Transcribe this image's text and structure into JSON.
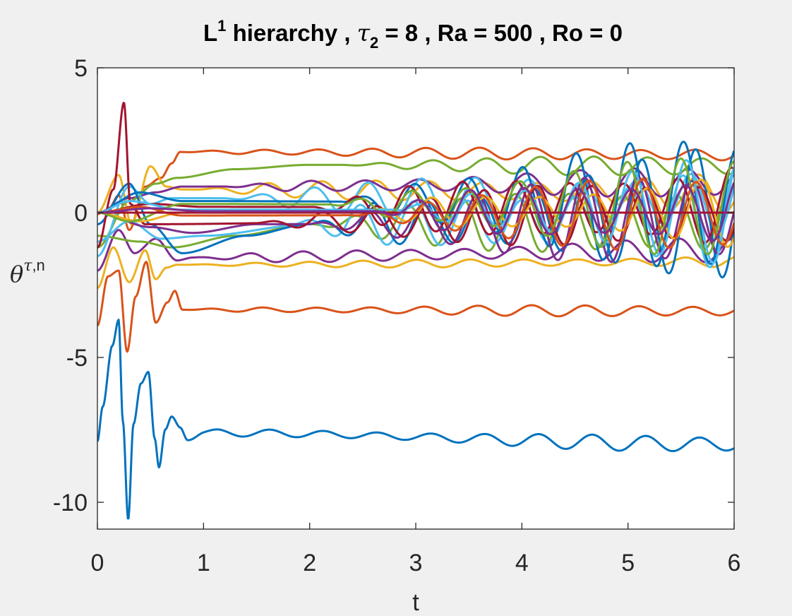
{
  "chart_data": {
    "type": "line",
    "title": {
      "part1": "L",
      "sup": "1",
      "part2": " hierarchy , ",
      "greek": "τ",
      "sub": "2",
      "part3": " = 8 , Ra = 500 , Ro = 0"
    },
    "xlabel": "t",
    "ylabel": {
      "greek": "θ",
      "sup_greek": "τ",
      "sup_text": ",n"
    },
    "xlim": [
      0,
      6
    ],
    "ylim": [
      -10.6,
      5
    ],
    "xticks": [
      0,
      1,
      2,
      3,
      4,
      5,
      6
    ],
    "xtick_labels": [
      "0",
      "1",
      "2",
      "3",
      "4",
      "5",
      "6"
    ],
    "yticks": [
      -10,
      -5,
      0,
      5
    ],
    "ytick_labels": [
      "-10",
      "-5",
      "0",
      "5"
    ],
    "grid": false,
    "box": true,
    "series_colors": [
      "#0072BD",
      "#D95319",
      "#EDB120",
      "#7E2F8E",
      "#77AC30",
      "#4DBEEE",
      "#A2142F"
    ],
    "series": [
      {
        "color": "#0072BD",
        "keypoints": [
          [
            0,
            -7.9
          ],
          [
            0.05,
            -6.7
          ],
          [
            0.14,
            -4.6
          ],
          [
            0.2,
            -3.7
          ],
          [
            0.24,
            -7.2
          ],
          [
            0.29,
            -10.6
          ],
          [
            0.34,
            -7.3
          ],
          [
            0.41,
            -5.9
          ],
          [
            0.48,
            -5.5
          ],
          [
            0.54,
            -7.8
          ],
          [
            0.58,
            -8.8
          ],
          [
            0.64,
            -7.5
          ],
          [
            0.7,
            -7.05
          ],
          [
            0.78,
            -7.4
          ],
          [
            0.85,
            -7.8
          ],
          [
            1.0,
            -7.6
          ],
          [
            6.0,
            -8.0
          ]
        ],
        "settle": -7.8,
        "osc_start": 0.55,
        "osc_amp": 0.08,
        "osc_growth": 0.4,
        "freq": 12.4,
        "phase": 0.3,
        "pts": 70
      },
      {
        "color": "#D95319",
        "keypoints": [
          [
            0,
            -3.9
          ],
          [
            0.1,
            -2.2
          ],
          [
            0.2,
            -2.0
          ],
          [
            0.28,
            -4.8
          ],
          [
            0.36,
            -2.9
          ],
          [
            0.46,
            -1.7
          ],
          [
            0.55,
            -3.8
          ],
          [
            0.66,
            -3.1
          ],
          [
            0.73,
            -2.7
          ],
          [
            0.8,
            -3.35
          ],
          [
            6.0,
            -3.4
          ]
        ],
        "settle": -3.35,
        "osc_start": 0.8,
        "osc_amp": 0.07,
        "osc_growth": 0.35,
        "freq": 12.4,
        "phase": 1.1,
        "pts": 60
      },
      {
        "color": "#D95319",
        "keypoints": [
          [
            0,
            -0.05
          ],
          [
            0.1,
            0.1
          ],
          [
            0.2,
            0.6
          ],
          [
            0.3,
            -0.6
          ],
          [
            0.45,
            0.9
          ],
          [
            0.6,
            1.2
          ],
          [
            0.7,
            1.7
          ],
          [
            0.78,
            2.1
          ],
          [
            6.0,
            2.0
          ]
        ],
        "settle": 2.15,
        "osc_start": 0.75,
        "osc_amp": 0.08,
        "osc_growth": 0.35,
        "freq": 12.4,
        "phase": 0.9,
        "pts": 60
      },
      {
        "color": "#EDB120",
        "keypoints": [
          [
            0,
            -2.6
          ],
          [
            0.15,
            -1.2
          ],
          [
            0.3,
            -2.4
          ],
          [
            0.45,
            -1.3
          ],
          [
            0.55,
            -2.3
          ],
          [
            0.65,
            -1.9
          ],
          [
            0.75,
            -1.8
          ],
          [
            6.0,
            -1.7
          ]
        ],
        "settle": -1.75,
        "osc_start": 0.8,
        "osc_amp": 0.06,
        "osc_growth": 0.35,
        "freq": 12.4,
        "phase": 2.0,
        "pts": 60
      },
      {
        "color": "#EDB120",
        "keypoints": [
          [
            0,
            0.0
          ],
          [
            0.2,
            1.3
          ],
          [
            0.32,
            -0.4
          ],
          [
            0.5,
            1.6
          ],
          [
            0.65,
            0.9
          ],
          [
            0.8,
            0.8
          ],
          [
            6.0,
            0.7
          ]
        ],
        "settle": 0.8,
        "osc_start": 0.9,
        "osc_amp": 0.15,
        "osc_growth": 0.5,
        "freq": 12.4,
        "phase": 0.5,
        "pts": 60
      },
      {
        "color": "#7E2F8E",
        "keypoints": [
          [
            0,
            -2.0
          ],
          [
            0.2,
            -0.6
          ],
          [
            0.35,
            -1.4
          ],
          [
            0.55,
            -0.9
          ],
          [
            0.75,
            -1.65
          ],
          [
            0.9,
            -1.55
          ],
          [
            6.0,
            -1.3
          ]
        ],
        "settle": -1.5,
        "osc_start": 0.9,
        "osc_amp": 0.1,
        "osc_growth": 0.5,
        "freq": 12.4,
        "phase": 2.7,
        "pts": 60
      },
      {
        "color": "#7E2F8E",
        "keypoints": [
          [
            0,
            0.0
          ],
          [
            0.3,
            0.5
          ],
          [
            0.55,
            0.7
          ],
          [
            0.8,
            0.9
          ],
          [
            6.0,
            1.05
          ]
        ],
        "settle": 0.95,
        "osc_start": 1.2,
        "osc_amp": 0.12,
        "osc_growth": 0.6,
        "freq": 12.4,
        "phase": 1.7,
        "pts": 60
      },
      {
        "color": "#77AC30",
        "keypoints": [
          [
            0,
            -1.2
          ],
          [
            0.3,
            0.4
          ],
          [
            0.55,
            1.0
          ],
          [
            0.75,
            1.2
          ],
          [
            1.3,
            1.5
          ],
          [
            2.0,
            1.65
          ],
          [
            6.0,
            1.6
          ]
        ],
        "settle": 1.6,
        "osc_start": 2.3,
        "osc_amp": 0.12,
        "osc_growth": 0.55,
        "freq": 12.4,
        "phase": 0.1,
        "pts": 60
      },
      {
        "color": "#77AC30",
        "keypoints": [
          [
            0,
            -0.8
          ],
          [
            0.4,
            -1.0
          ],
          [
            0.7,
            -1.2
          ],
          [
            1.3,
            -0.8
          ],
          [
            2.0,
            -0.4
          ],
          [
            6.0,
            -0.3
          ]
        ],
        "settle": -0.4,
        "osc_start": 2.0,
        "osc_amp": 0.35,
        "osc_growth": 0.7,
        "freq": 12.4,
        "phase": 3.0,
        "pts": 60
      },
      {
        "color": "#4DBEEE",
        "keypoints": [
          [
            0,
            -1.5
          ],
          [
            0.3,
            0.9
          ],
          [
            0.5,
            0.3
          ],
          [
            0.7,
            0.5
          ],
          [
            6.0,
            0.4
          ]
        ],
        "settle": 0.45,
        "osc_start": 1.2,
        "osc_amp": 0.25,
        "osc_growth": 0.7,
        "freq": 12.4,
        "phase": 1.4,
        "pts": 60
      },
      {
        "color": "#4DBEEE",
        "keypoints": [
          [
            0,
            -1.0
          ],
          [
            0.3,
            -0.3
          ],
          [
            0.6,
            -0.9
          ],
          [
            1.0,
            -0.8
          ],
          [
            2.0,
            -0.4
          ],
          [
            6.0,
            -0.2
          ]
        ],
        "settle": -0.5,
        "osc_start": 1.8,
        "osc_amp": 0.35,
        "osc_growth": 0.75,
        "freq": 12.4,
        "phase": 2.3,
        "pts": 60
      },
      {
        "color": "#0072BD",
        "keypoints": [
          [
            0,
            -0.4
          ],
          [
            0.3,
            1.0
          ],
          [
            0.5,
            -0.4
          ],
          [
            0.8,
            -1.4
          ],
          [
            1.4,
            -0.8
          ],
          [
            2.0,
            -0.4
          ],
          [
            6.0,
            0.0
          ]
        ],
        "settle": -0.3,
        "osc_start": 2.0,
        "osc_amp": 0.45,
        "osc_growth": 0.8,
        "freq": 12.4,
        "phase": 0.8,
        "pts": 60
      },
      {
        "color": "#0072BD",
        "keypoints": [
          [
            0,
            0.0
          ],
          [
            0.4,
            0.7
          ],
          [
            0.8,
            0.4
          ],
          [
            6.0,
            0.3
          ]
        ],
        "settle": 0.3,
        "osc_start": 2.3,
        "osc_amp": 0.55,
        "osc_growth": 0.75,
        "freq": 12.4,
        "phase": 2.2,
        "pts": 60
      },
      {
        "color": "#7E2F8E",
        "keypoints": [
          [
            0,
            0.0
          ],
          [
            0.5,
            -0.5
          ],
          [
            0.9,
            -0.7
          ],
          [
            1.5,
            -0.4
          ],
          [
            6.0,
            -0.2
          ]
        ],
        "settle": -0.35,
        "osc_start": 2.0,
        "osc_amp": 0.4,
        "osc_growth": 0.75,
        "freq": 12.4,
        "phase": 1.2,
        "pts": 60
      },
      {
        "color": "#A2142F",
        "keypoints": [
          [
            0,
            -1.2
          ],
          [
            0.15,
            0.8
          ],
          [
            0.25,
            3.8
          ],
          [
            0.31,
            0.3
          ],
          [
            0.45,
            -0.4
          ],
          [
            6.0,
            0.0
          ]
        ],
        "settle": 0.0,
        "osc_start": 1.5,
        "osc_amp": 0.3,
        "osc_growth": 0.7,
        "freq": 12.4,
        "phase": 0.4,
        "pts": 60
      },
      {
        "color": "#A2142F",
        "keypoints": [
          [
            0,
            0.0
          ],
          [
            0.5,
            0.3
          ],
          [
            1.0,
            0.2
          ],
          [
            6.0,
            0.15
          ]
        ],
        "settle": 0.15,
        "osc_start": 2.0,
        "osc_amp": 0.35,
        "osc_growth": 0.75,
        "freq": 12.4,
        "phase": 2.9,
        "pts": 60
      },
      {
        "color": "#EDB120",
        "keypoints": [
          [
            0,
            0.0
          ],
          [
            0.4,
            -0.3
          ],
          [
            0.8,
            0.0
          ],
          [
            6.0,
            0.05
          ]
        ],
        "settle": 0.05,
        "osc_start": 2.5,
        "osc_amp": 0.3,
        "osc_growth": 0.7,
        "freq": 12.4,
        "phase": 0.2,
        "pts": 60
      },
      {
        "color": "#4DBEEE",
        "keypoints": [
          [
            0,
            0.0
          ],
          [
            0.3,
            0.4
          ],
          [
            0.8,
            0.1
          ],
          [
            6.0,
            0.1
          ]
        ],
        "settle": 0.1,
        "osc_start": 2.8,
        "osc_amp": 0.45,
        "osc_growth": 0.75,
        "freq": 12.4,
        "phase": 1.9,
        "pts": 60
      },
      {
        "color": "#77AC30",
        "keypoints": [
          [
            0,
            0.0
          ],
          [
            0.3,
            -0.3
          ],
          [
            0.8,
            0.3
          ],
          [
            6.0,
            0.2
          ]
        ],
        "settle": 0.25,
        "osc_start": 2.2,
        "osc_amp": 0.4,
        "osc_growth": 0.75,
        "freq": 12.4,
        "phase": 2.5,
        "pts": 60
      },
      {
        "color": "#D95319",
        "keypoints": [
          [
            0,
            0.0
          ],
          [
            0.4,
            0.2
          ],
          [
            0.8,
            -0.1
          ],
          [
            6.0,
            -0.05
          ]
        ],
        "settle": -0.05,
        "osc_start": 2.4,
        "osc_amp": 0.35,
        "osc_growth": 0.75,
        "freq": 12.4,
        "phase": 0.7,
        "pts": 60
      },
      {
        "color": "#A2142F",
        "keypoints": [
          [
            0,
            0.0
          ],
          [
            6.0,
            0.0
          ]
        ],
        "settle": 0.0,
        "osc_start": 3.0,
        "osc_amp": 0.0,
        "osc_growth": 0.0,
        "freq": 12.4,
        "phase": 0.0,
        "pts": 2
      },
      {
        "color": "#7E2F8E",
        "keypoints": [
          [
            0,
            0.0
          ],
          [
            0.5,
            0.15
          ],
          [
            1.0,
            0.05
          ],
          [
            6.0,
            0.05
          ]
        ],
        "settle": 0.05,
        "osc_start": 2.6,
        "osc_amp": 0.35,
        "osc_growth": 0.75,
        "freq": 12.4,
        "phase": 2.0,
        "pts": 60
      }
    ]
  }
}
